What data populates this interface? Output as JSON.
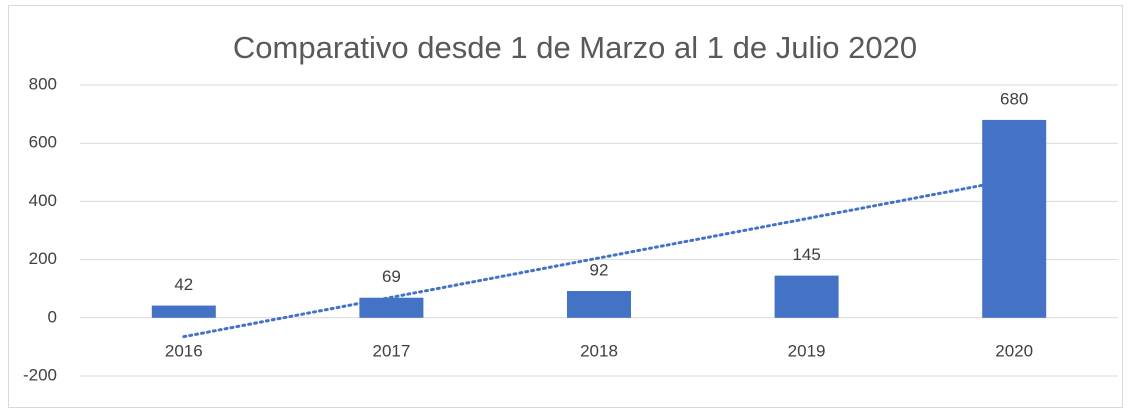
{
  "chart_data": {
    "type": "bar",
    "title": "Comparativo desde 1 de Marzo al 1 de Julio 2020",
    "categories": [
      "2016",
      "2017",
      "2018",
      "2019",
      "2020"
    ],
    "values": [
      42,
      69,
      92,
      145,
      680
    ],
    "color": "#4472c4",
    "ylim": [
      -200,
      800
    ],
    "yticks": [
      -200,
      0,
      200,
      400,
      600,
      800
    ],
    "grid": true,
    "data_labels": true,
    "trendline": "linear"
  }
}
